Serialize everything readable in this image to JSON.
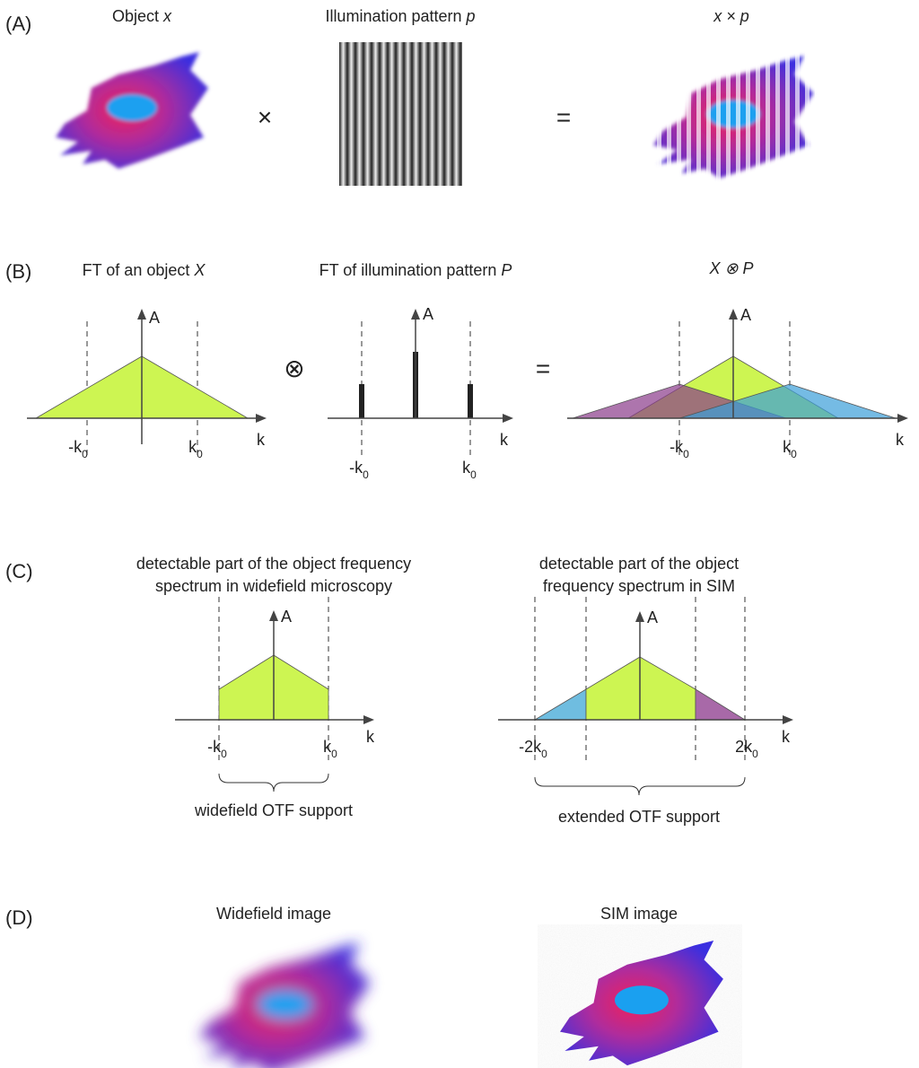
{
  "panel_a": {
    "label": "(A)",
    "object_title": {
      "text": "Object",
      "var": "x"
    },
    "pattern_title": {
      "text": "Illumination pattern",
      "var": "p"
    },
    "product_title": "x × p",
    "times": "×",
    "equals": "="
  },
  "panel_b": {
    "label": "(B)",
    "ft_object_title": {
      "text": "FT of an object",
      "var": "X"
    },
    "ft_pattern_title": {
      "text": "FT of illumination pattern",
      "var": "P"
    },
    "convolution_title": "X ⊗ P",
    "convolve": "⊗",
    "equals": "=",
    "amplitude_axis": "A",
    "frequency_axis": "k",
    "minus_k": "-k",
    "plus_k": "k",
    "subscript": "0"
  },
  "panel_c": {
    "label": "(C)",
    "widefield_title": [
      "detectable part of the object frequency",
      "spectrum in widefield microscopy"
    ],
    "sim_title": [
      "detectable part of the object",
      "frequency spectrum in SIM"
    ],
    "amplitude_axis": "A",
    "frequency_axis": "k",
    "minus_k": "-k",
    "plus_k": "k",
    "minus_2k": "-2k",
    "plus_2k": "2k",
    "subscript": "0",
    "widefield_support": "widefield OTF support",
    "extended_support": "extended OTF support"
  },
  "panel_d": {
    "label": "(D)",
    "widefield_title": "Widefield image",
    "sim_title": "SIM image"
  }
}
